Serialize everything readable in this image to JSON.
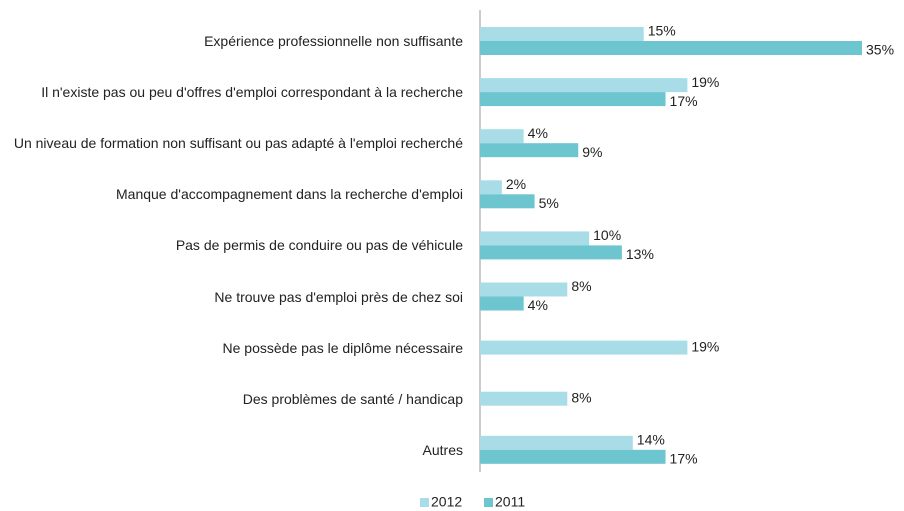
{
  "chart_data": {
    "type": "bar",
    "orientation": "horizontal",
    "categories": [
      "Expérience professionnelle non suffisante",
      "Il n'existe pas ou peu d'offres d'emploi correspondant à la recherche",
      "Un niveau de formation non suffisant ou pas adapté à l'emploi recherché",
      "Manque d'accompagnement dans la recherche d'emploi",
      "Pas de permis de conduire ou pas de véhicule",
      "Ne trouve pas d'emploi près de chez soi",
      "Ne possède pas le diplôme nécessaire",
      "Des problèmes de santé / handicap",
      "Autres"
    ],
    "series": [
      {
        "name": "2012",
        "color": "#a8dde8",
        "values": [
          15,
          19,
          4,
          2,
          10,
          8,
          19,
          8,
          14
        ],
        "value_labels": [
          "15%",
          "19%",
          "4%",
          "2%",
          "10%",
          "8%",
          "19%",
          "8%",
          "14%"
        ]
      },
      {
        "name": "2011",
        "color": "#6cc5cf",
        "values": [
          35,
          17,
          9,
          5,
          13,
          4,
          null,
          null,
          17
        ],
        "value_labels": [
          "35%",
          "17%",
          "9%",
          "5%",
          "13%",
          "4%",
          null,
          null,
          "17%"
        ]
      }
    ],
    "legend": "bottom"
  }
}
